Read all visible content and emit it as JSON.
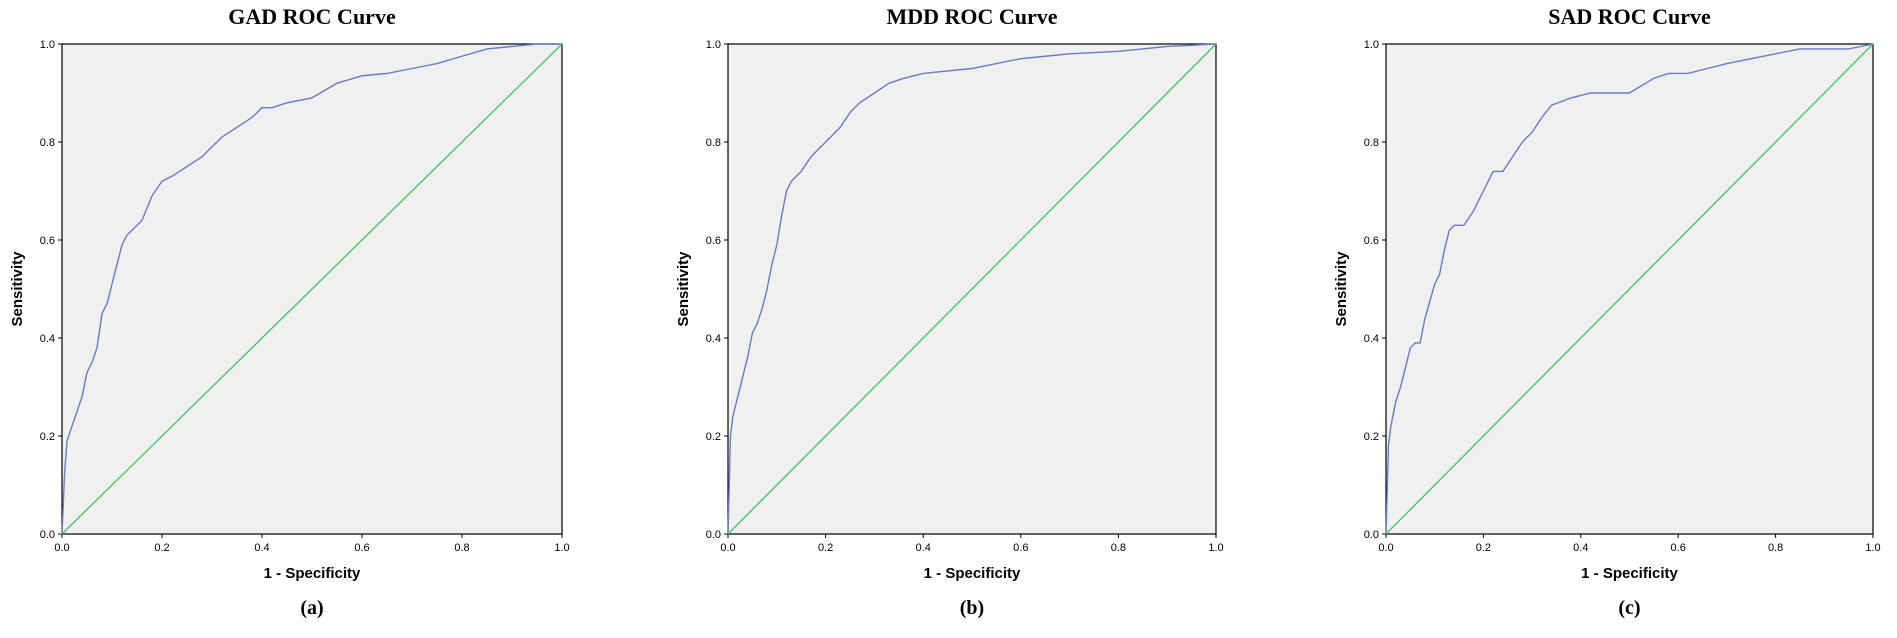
{
  "chart_data": [
    {
      "type": "line",
      "title": "GAD ROC Curve",
      "caption": "(a)",
      "xlabel": "1 - Specificity",
      "ylabel": "Sensitivity",
      "xlim": [
        0,
        1
      ],
      "ylim": [
        0,
        1
      ],
      "xticks": [
        "0.0",
        "0.2",
        "0.4",
        "0.6",
        "0.8",
        "1.0"
      ],
      "yticks": [
        "0.0",
        "0.2",
        "0.4",
        "0.6",
        "0.8",
        "1.0"
      ],
      "grid": false,
      "series": [
        {
          "color": "#6d79c4",
          "x": [
            0,
            0.005,
            0.01,
            0.02,
            0.03,
            0.04,
            0.05,
            0.06,
            0.07,
            0.08,
            0.09,
            0.1,
            0.11,
            0.12,
            0.13,
            0.14,
            0.16,
            0.18,
            0.2,
            0.22,
            0.25,
            0.28,
            0.3,
            0.32,
            0.35,
            0.38,
            0.4,
            0.42,
            0.45,
            0.5,
            0.55,
            0.6,
            0.65,
            0.7,
            0.75,
            0.8,
            0.85,
            0.9,
            0.95,
            1.0
          ],
          "y": [
            0,
            0.12,
            0.19,
            0.22,
            0.25,
            0.28,
            0.33,
            0.35,
            0.38,
            0.45,
            0.47,
            0.51,
            0.55,
            0.59,
            0.61,
            0.62,
            0.64,
            0.69,
            0.72,
            0.73,
            0.75,
            0.77,
            0.79,
            0.81,
            0.83,
            0.85,
            0.87,
            0.87,
            0.88,
            0.89,
            0.92,
            0.935,
            0.94,
            0.95,
            0.96,
            0.975,
            0.99,
            0.995,
            1.0,
            1.0
          ]
        },
        {
          "color": "#4bc56a",
          "x": [
            0,
            1
          ],
          "y": [
            0,
            1
          ]
        }
      ]
    },
    {
      "type": "line",
      "title": "MDD ROC Curve",
      "caption": "(b)",
      "xlabel": "1 - Specificity",
      "ylabel": "Sensitivity",
      "xlim": [
        0,
        1
      ],
      "ylim": [
        0,
        1
      ],
      "xticks": [
        "0.0",
        "0.2",
        "0.4",
        "0.6",
        "0.8",
        "1.0"
      ],
      "yticks": [
        "0.0",
        "0.2",
        "0.4",
        "0.6",
        "0.8",
        "1.0"
      ],
      "grid": false,
      "series": [
        {
          "color": "#6d79c4",
          "x": [
            0,
            0.005,
            0.01,
            0.02,
            0.03,
            0.04,
            0.05,
            0.06,
            0.07,
            0.08,
            0.09,
            0.1,
            0.11,
            0.12,
            0.13,
            0.15,
            0.17,
            0.19,
            0.21,
            0.23,
            0.25,
            0.27,
            0.3,
            0.33,
            0.36,
            0.4,
            0.45,
            0.5,
            0.55,
            0.6,
            0.65,
            0.7,
            0.8,
            0.9,
            1.0
          ],
          "y": [
            0,
            0.2,
            0.24,
            0.28,
            0.32,
            0.36,
            0.41,
            0.43,
            0.46,
            0.5,
            0.55,
            0.59,
            0.65,
            0.7,
            0.72,
            0.74,
            0.77,
            0.79,
            0.81,
            0.83,
            0.86,
            0.88,
            0.9,
            0.92,
            0.93,
            0.94,
            0.945,
            0.95,
            0.96,
            0.97,
            0.975,
            0.98,
            0.985,
            0.995,
            1.0
          ]
        },
        {
          "color": "#4bc56a",
          "x": [
            0,
            1
          ],
          "y": [
            0,
            1
          ]
        }
      ]
    },
    {
      "type": "line",
      "title": "SAD ROC Curve",
      "caption": "(c)",
      "xlabel": "1 - Specificity",
      "ylabel": "Sensitivity",
      "xlim": [
        0,
        1
      ],
      "ylim": [
        0,
        1
      ],
      "xticks": [
        "0.0",
        "0.2",
        "0.4",
        "0.6",
        "0.8",
        "1.0"
      ],
      "yticks": [
        "0.0",
        "0.2",
        "0.4",
        "0.6",
        "0.8",
        "1.0"
      ],
      "grid": false,
      "series": [
        {
          "color": "#6d79c4",
          "x": [
            0,
            0.005,
            0.01,
            0.02,
            0.03,
            0.04,
            0.05,
            0.06,
            0.07,
            0.08,
            0.1,
            0.11,
            0.12,
            0.13,
            0.14,
            0.16,
            0.18,
            0.2,
            0.22,
            0.24,
            0.26,
            0.28,
            0.3,
            0.32,
            0.34,
            0.38,
            0.42,
            0.46,
            0.5,
            0.55,
            0.58,
            0.62,
            0.66,
            0.7,
            0.75,
            0.8,
            0.85,
            0.9,
            0.95,
            1.0
          ],
          "y": [
            0,
            0.18,
            0.22,
            0.27,
            0.3,
            0.34,
            0.38,
            0.39,
            0.39,
            0.44,
            0.51,
            0.53,
            0.58,
            0.62,
            0.63,
            0.63,
            0.66,
            0.7,
            0.74,
            0.74,
            0.77,
            0.8,
            0.82,
            0.85,
            0.875,
            0.89,
            0.9,
            0.9,
            0.9,
            0.93,
            0.94,
            0.94,
            0.95,
            0.96,
            0.97,
            0.98,
            0.99,
            0.99,
            0.99,
            1.0
          ]
        },
        {
          "color": "#4bc56a",
          "x": [
            0,
            1
          ],
          "y": [
            0,
            1
          ]
        }
      ]
    }
  ]
}
